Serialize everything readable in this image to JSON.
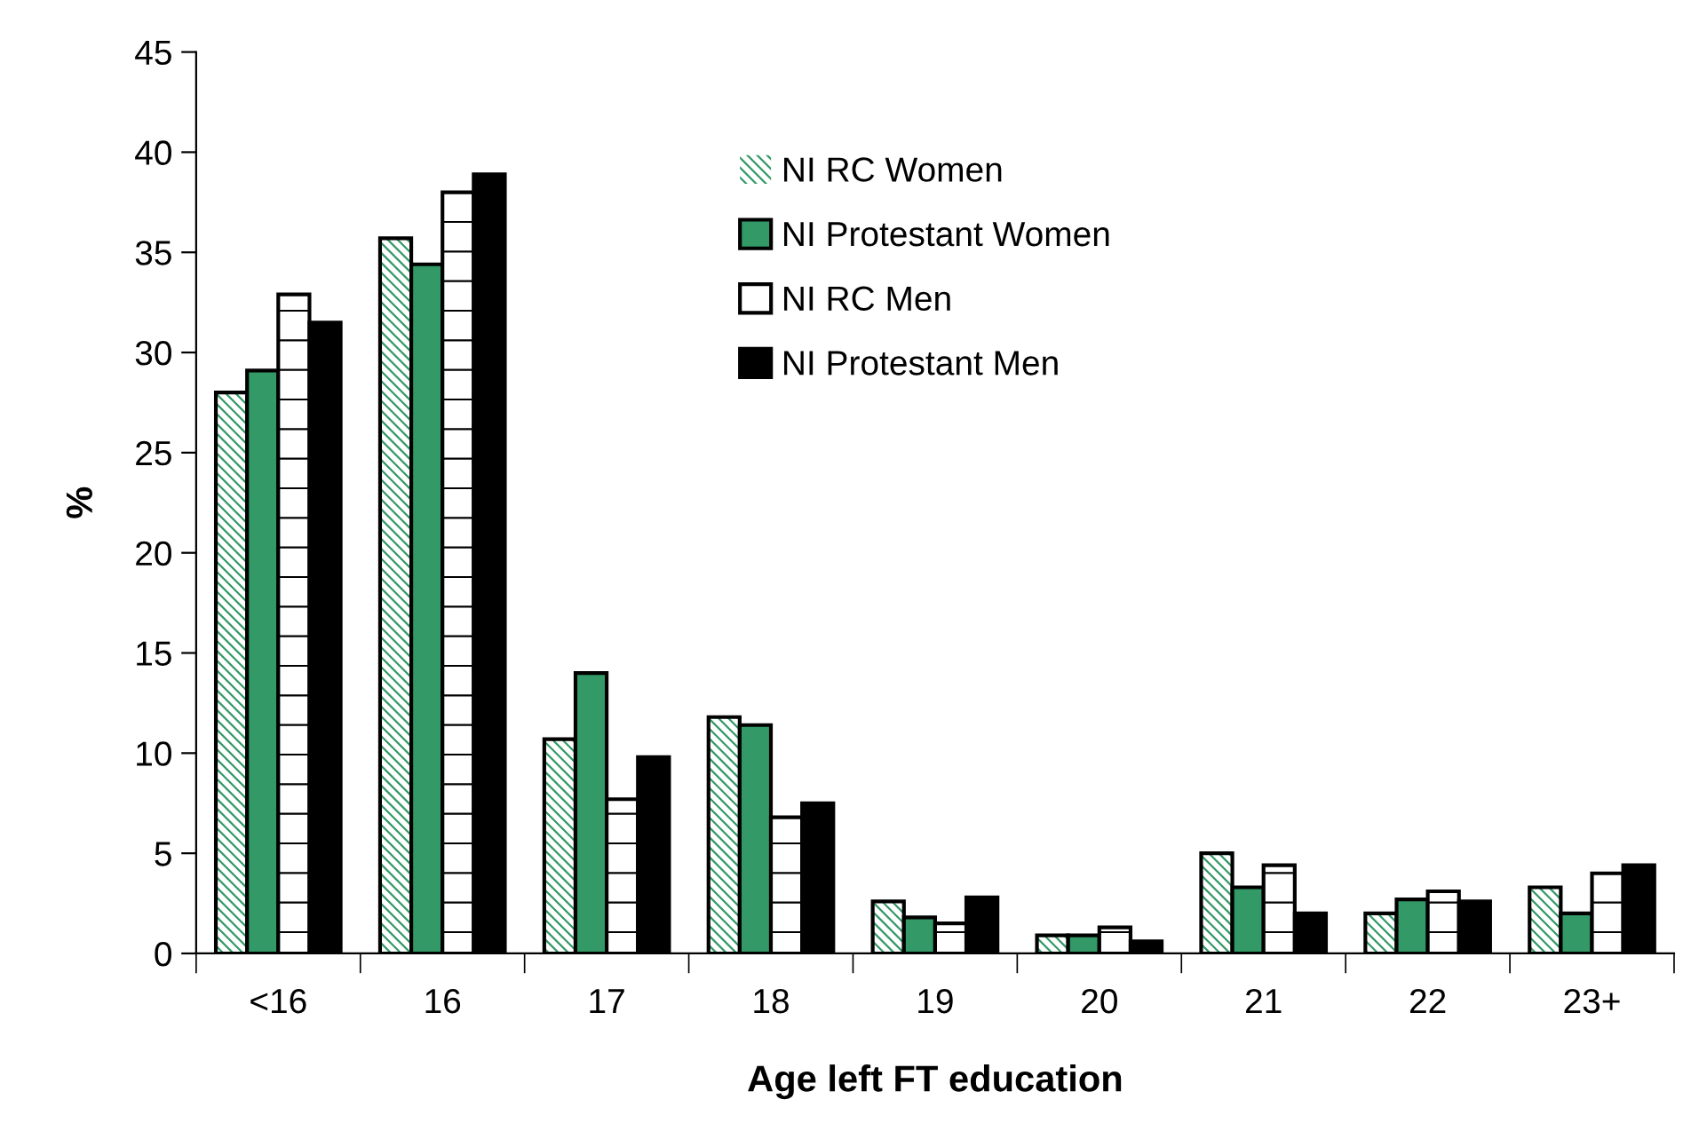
{
  "chart_data": {
    "type": "bar",
    "xlabel": "Age left FT education",
    "ylabel": "%",
    "categories": [
      "<16",
      "16",
      "17",
      "18",
      "19",
      "20",
      "21",
      "22",
      "23+"
    ],
    "series": [
      {
        "name": "NI RC Women",
        "color": "#339966",
        "values": [
          28,
          35.7,
          10.7,
          11.8,
          2.6,
          0.9,
          5.0,
          2.0,
          3.3
        ]
      },
      {
        "name": "NI Protestant Women",
        "color": "#339966",
        "values": [
          29.1,
          34.4,
          14.0,
          11.4,
          1.8,
          0.9,
          3.3,
          2.7,
          2.0
        ]
      },
      {
        "name": "NI RC Men",
        "color": "#ffffff",
        "values": [
          32.9,
          38.0,
          7.7,
          6.8,
          1.5,
          1.3,
          4.4,
          3.1,
          4.0
        ]
      },
      {
        "name": "NI Protestant Men",
        "color": "#000000",
        "values": [
          31.5,
          38.9,
          9.8,
          7.5,
          2.8,
          0.6,
          2.0,
          2.6,
          4.4
        ]
      }
    ],
    "ylim": [
      0,
      45
    ],
    "yticks": [
      0,
      5,
      10,
      15,
      20,
      25,
      30,
      35,
      40,
      45
    ],
    "legend": "top right"
  }
}
